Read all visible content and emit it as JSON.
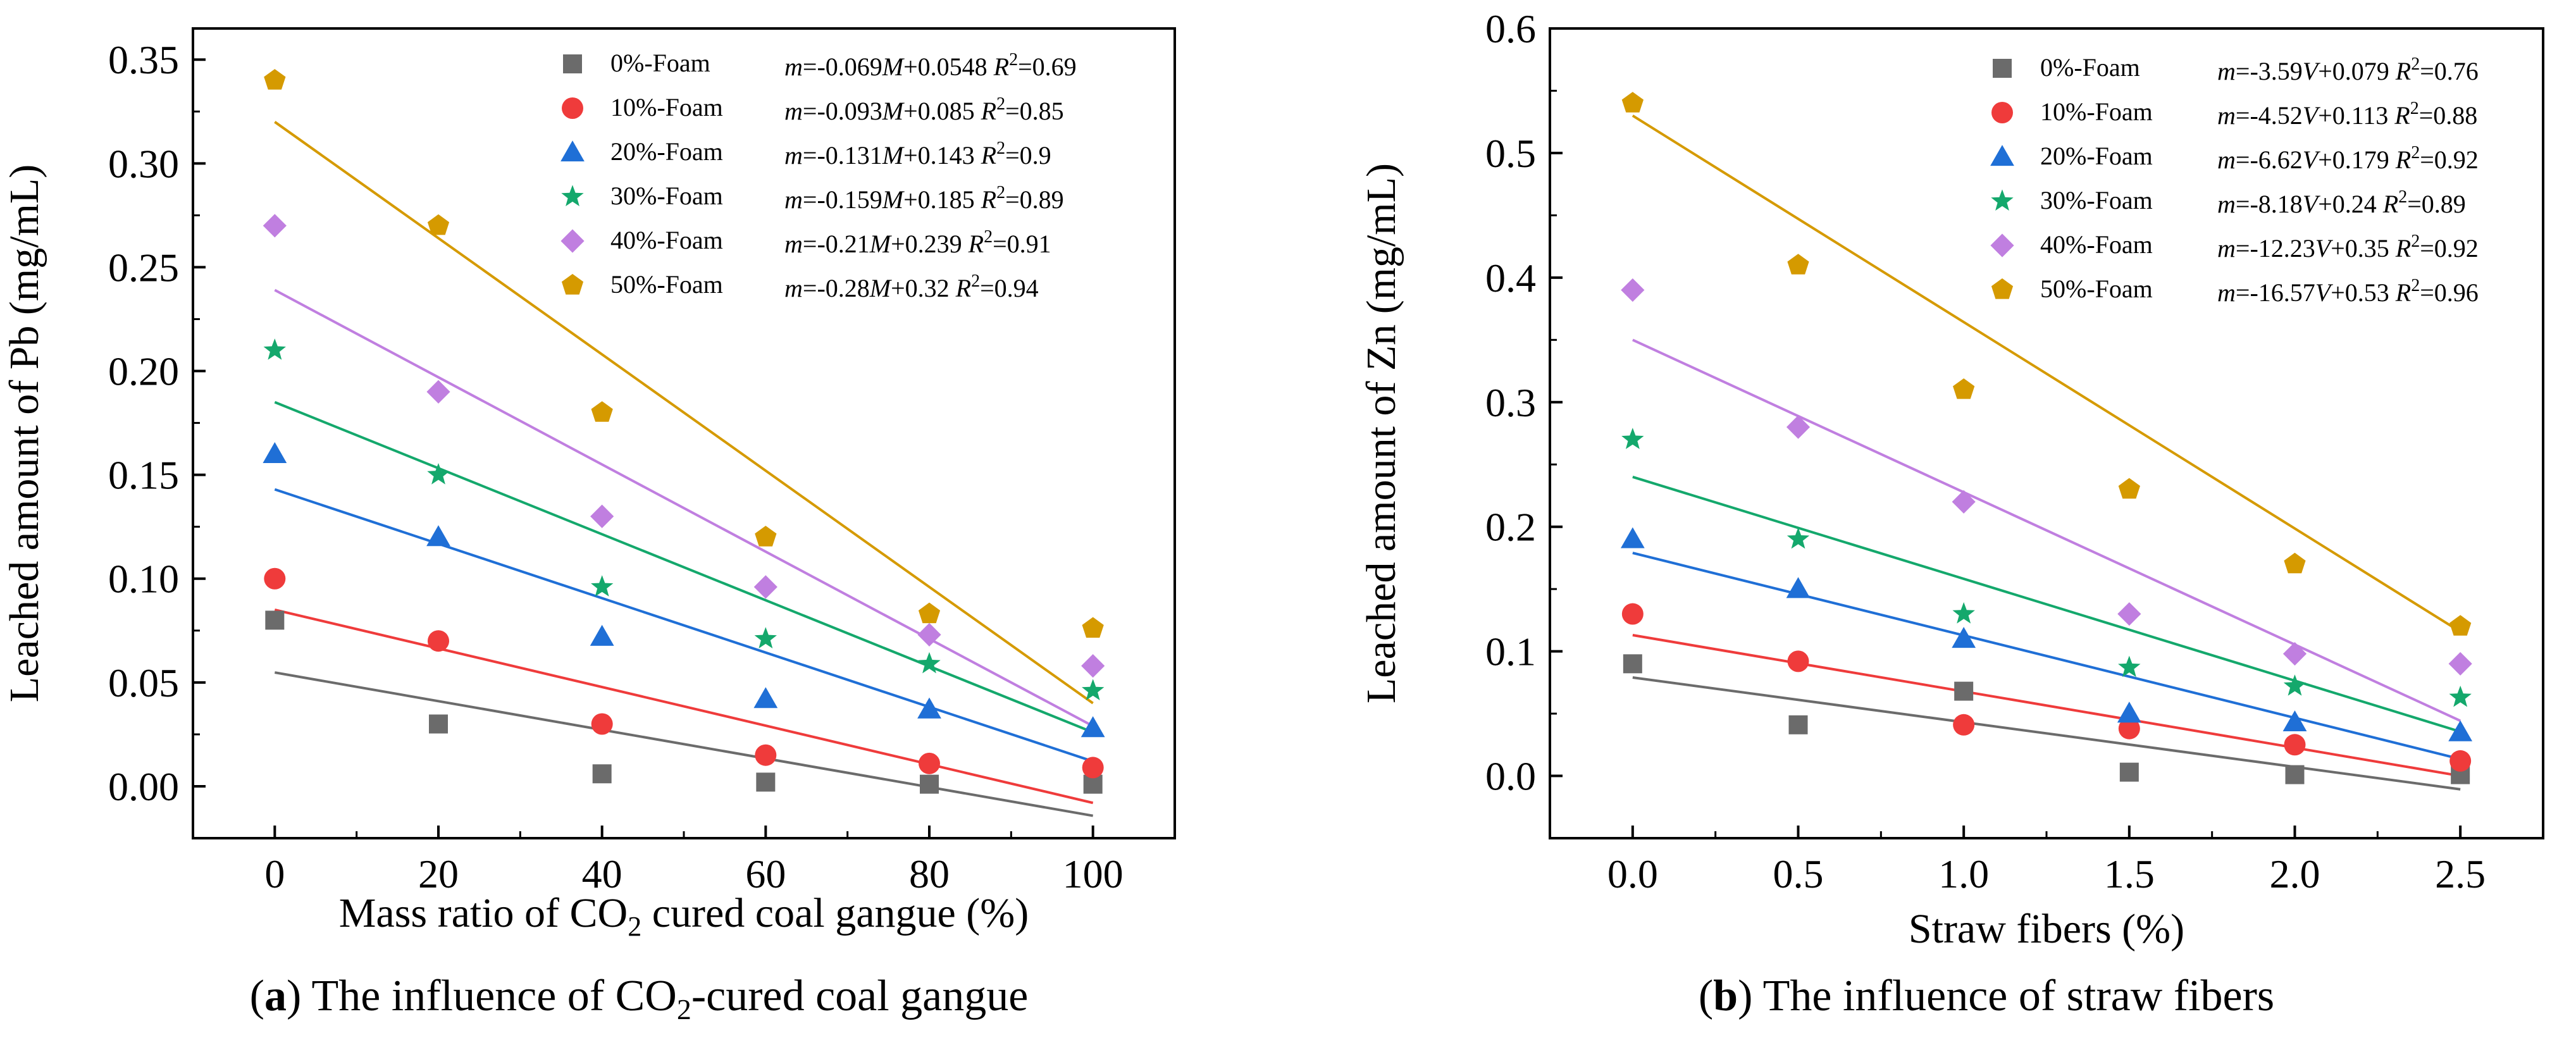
{
  "chart_data": [
    {
      "type": "scatter",
      "panel_label": "a",
      "caption": "The influence of CO2-cured coal gangue",
      "xlabel": "Mass ratio of CO2 cured coal gangue (%)",
      "ylabel": "Leached amount of Pb (mg/mL)",
      "xlim": [
        -10,
        110
      ],
      "ylim": [
        -0.025,
        0.365
      ],
      "xticks": [
        0,
        20,
        40,
        60,
        80,
        100
      ],
      "yticks": [
        0.0,
        0.05,
        0.1,
        0.15,
        0.2,
        0.25,
        0.3,
        0.35
      ],
      "ytick_labels": [
        "0.00",
        "0.05",
        "0.10",
        "0.15",
        "0.20",
        "0.25",
        "0.30",
        "0.35"
      ],
      "xtick_labels": [
        "0",
        "20",
        "40",
        "60",
        "80",
        "100"
      ],
      "fit_variable": "M",
      "legend_position": "top-right",
      "x": [
        0,
        20,
        40,
        60,
        80,
        100
      ],
      "series": [
        {
          "name": "0%-Foam",
          "marker": "square",
          "color": "#6b6b6b",
          "values": [
            0.08,
            0.03,
            0.006,
            0.002,
            0.001,
            0.001
          ],
          "fit": {
            "slope": -0.069,
            "intercept": 0.0548,
            "r2": "0.69"
          },
          "eq": {
            "slope": "-0.069",
            "intercept": "+0.0548",
            "r2": "=0.69"
          }
        },
        {
          "name": "10%-Foam",
          "marker": "circle",
          "color": "#ef3b3b",
          "values": [
            0.1,
            0.07,
            0.03,
            0.015,
            0.011,
            0.009
          ],
          "fit": {
            "slope": -0.093,
            "intercept": 0.085,
            "r2": "0.85"
          },
          "eq": {
            "slope": "-0.093",
            "intercept": "+0.085",
            "r2": "=0.85"
          }
        },
        {
          "name": "20%-Foam",
          "marker": "triangle",
          "color": "#1f6fd6",
          "values": [
            0.16,
            0.12,
            0.072,
            0.042,
            0.037,
            0.028
          ],
          "fit": {
            "slope": -0.131,
            "intercept": 0.143,
            "r2": "0.9"
          },
          "eq": {
            "slope": "-0.131",
            "intercept": "+0.143",
            "r2": "=0.9"
          }
        },
        {
          "name": "30%-Foam",
          "marker": "star",
          "color": "#14a86c",
          "values": [
            0.21,
            0.15,
            0.096,
            0.071,
            0.059,
            0.046
          ],
          "fit": {
            "slope": -0.159,
            "intercept": 0.185,
            "r2": "0.89"
          },
          "eq": {
            "slope": "-0.159",
            "intercept": "+0.185",
            "r2": "=0.89"
          }
        },
        {
          "name": "40%-Foam",
          "marker": "diamond",
          "color": "#c07fe0",
          "values": [
            0.27,
            0.19,
            0.13,
            0.096,
            0.073,
            0.058
          ],
          "fit": {
            "slope": -0.21,
            "intercept": 0.239,
            "r2": "0.91"
          },
          "eq": {
            "slope": "-0.21",
            "intercept": "+0.239",
            "r2": "=0.91"
          }
        },
        {
          "name": "50%-Foam",
          "marker": "pentagon",
          "color": "#d59a00",
          "values": [
            0.34,
            0.27,
            0.18,
            0.12,
            0.083,
            0.076
          ],
          "fit": {
            "slope": -0.28,
            "intercept": 0.32,
            "r2": "0.94"
          },
          "eq": {
            "slope": "-0.28",
            "intercept": "+0.32",
            "r2": "=0.94"
          }
        }
      ]
    },
    {
      "type": "scatter",
      "panel_label": "b",
      "caption": "The influence of straw fibers",
      "xlabel": "Straw fibers (%)",
      "ylabel": "Leached amount of Zn (mg/mL)",
      "xlim": [
        -0.25,
        2.75
      ],
      "ylim": [
        -0.05,
        0.6
      ],
      "xticks": [
        0.0,
        0.5,
        1.0,
        1.5,
        2.0,
        2.5
      ],
      "yticks": [
        0.0,
        0.1,
        0.2,
        0.3,
        0.4,
        0.5,
        0.6
      ],
      "ytick_labels": [
        "0.0",
        "0.1",
        "0.2",
        "0.3",
        "0.4",
        "0.5",
        "0.6"
      ],
      "xtick_labels": [
        "0.0",
        "0.5",
        "1.0",
        "1.5",
        "2.0",
        "2.5"
      ],
      "fit_variable": "V",
      "legend_position": "top-right",
      "x": [
        0.0,
        0.5,
        1.0,
        1.5,
        2.0,
        2.5
      ],
      "series": [
        {
          "name": "0%-Foam",
          "marker": "square",
          "color": "#6b6b6b",
          "values": [
            0.09,
            0.041,
            0.068,
            0.003,
            0.001,
            0.001
          ],
          "fit": {
            "slope": -3.59,
            "intercept": 0.079,
            "r2": "0.76"
          },
          "eq": {
            "slope": "-3.59",
            "intercept": "+0.079",
            "r2": "=0.76"
          }
        },
        {
          "name": "10%-Foam",
          "marker": "circle",
          "color": "#ef3b3b",
          "values": [
            0.13,
            0.092,
            0.041,
            0.038,
            0.025,
            0.012
          ],
          "fit": {
            "slope": -4.52,
            "intercept": 0.113,
            "r2": "0.88"
          },
          "eq": {
            "slope": "-4.52",
            "intercept": "+0.113",
            "r2": "=0.88"
          }
        },
        {
          "name": "20%-Foam",
          "marker": "triangle",
          "color": "#1f6fd6",
          "values": [
            0.19,
            0.15,
            0.11,
            0.05,
            0.043,
            0.035
          ],
          "fit": {
            "slope": -6.62,
            "intercept": 0.179,
            "r2": "0.92"
          },
          "eq": {
            "slope": "-6.62",
            "intercept": "+0.179",
            "r2": "=0.92"
          }
        },
        {
          "name": "30%-Foam",
          "marker": "star",
          "color": "#14a86c",
          "values": [
            0.27,
            0.19,
            0.13,
            0.087,
            0.072,
            0.063
          ],
          "fit": {
            "slope": -8.18,
            "intercept": 0.24,
            "r2": "0.89"
          },
          "eq": {
            "slope": "-8.18",
            "intercept": "+0.24",
            "r2": "=0.89"
          }
        },
        {
          "name": "40%-Foam",
          "marker": "diamond",
          "color": "#c07fe0",
          "values": [
            0.39,
            0.28,
            0.22,
            0.13,
            0.098,
            0.09
          ],
          "fit": {
            "slope": -12.23,
            "intercept": 0.35,
            "r2": "0.92"
          },
          "eq": {
            "slope": "-12.23",
            "intercept": "+0.35",
            "r2": "=0.92"
          }
        },
        {
          "name": "50%-Foam",
          "marker": "pentagon",
          "color": "#d59a00",
          "values": [
            0.54,
            0.41,
            0.31,
            0.23,
            0.17,
            0.12
          ],
          "fit": {
            "slope": -16.57,
            "intercept": 0.53,
            "r2": "0.96"
          },
          "eq": {
            "slope": "-16.57",
            "intercept": "+0.53",
            "r2": "=0.96"
          }
        }
      ]
    }
  ]
}
